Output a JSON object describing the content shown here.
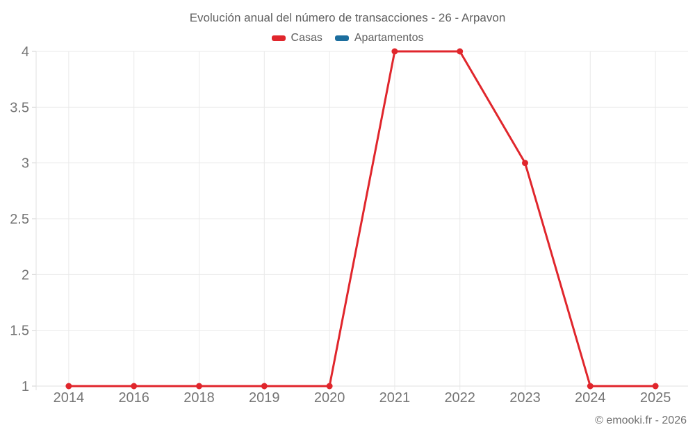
{
  "copyright": "© emooki.fr - 2026",
  "colors": {
    "casas": "#e0262c",
    "apartamentos": "#1c6e9e",
    "grid": "#e9e9e9",
    "axis_line": "#e0e0e0",
    "tick": "#d2d2d2",
    "axis_text": "#757575"
  },
  "chart_data": {
    "type": "line",
    "title": "Evolución anual del número de transacciones - 26 - Arpavon",
    "categories": [
      "2014",
      "2016",
      "2018",
      "2019",
      "2020",
      "2021",
      "2022",
      "2023",
      "2024",
      "2025"
    ],
    "series": [
      {
        "name": "Casas",
        "color": "#e0262c",
        "values": [
          1,
          1,
          1,
          1,
          1,
          4,
          4,
          3,
          1,
          1
        ]
      },
      {
        "name": "Apartamentos",
        "color": "#1c6e9e",
        "values": []
      }
    ],
    "xlabel": "",
    "ylabel": "",
    "ylim": [
      1,
      4
    ],
    "y_ticks": [
      {
        "label": "4",
        "value": 4
      },
      {
        "label": "3.5",
        "value": 3.5
      },
      {
        "label": "3",
        "value": 3
      },
      {
        "label": "2.5",
        "value": 2.5
      },
      {
        "label": "2",
        "value": 2
      },
      {
        "label": "1.5",
        "value": 1.5
      },
      {
        "label": "1",
        "value": 1
      }
    ],
    "grid": true,
    "legend_position": "top",
    "markers": true
  }
}
